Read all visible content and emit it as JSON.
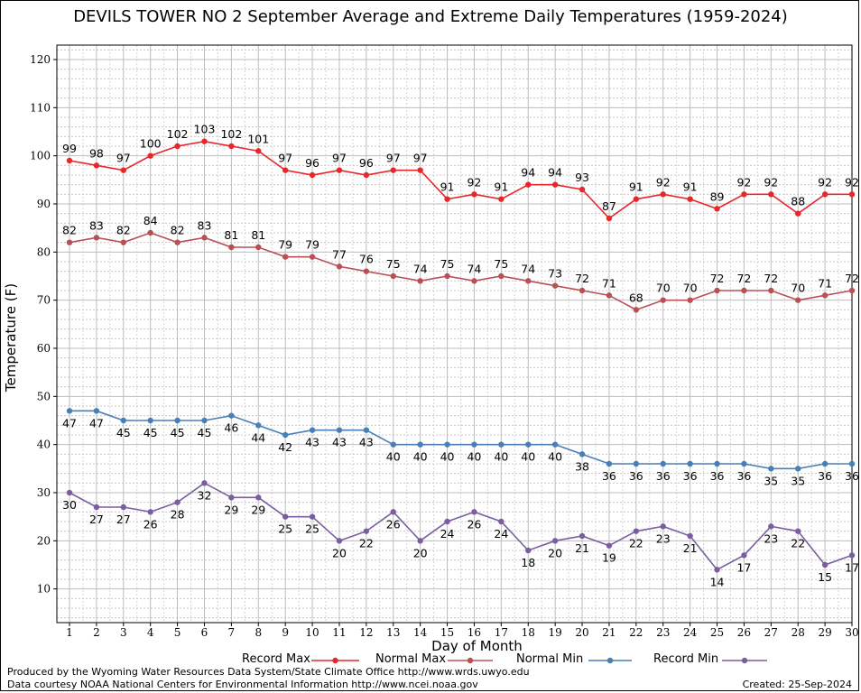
{
  "chart_data": {
    "type": "line",
    "title": "DEVILS TOWER NO 2 September Average and Extreme Daily Temperatures (1959-2024)",
    "xlabel": "Day of Month",
    "ylabel": "Temperature (F)",
    "xlim": [
      1,
      30
    ],
    "ylim": [
      3,
      123
    ],
    "yticks": [
      10,
      20,
      30,
      40,
      50,
      60,
      70,
      80,
      90,
      100,
      110,
      120
    ],
    "x": [
      1,
      2,
      3,
      4,
      5,
      6,
      7,
      8,
      9,
      10,
      11,
      12,
      13,
      14,
      15,
      16,
      17,
      18,
      19,
      20,
      21,
      22,
      23,
      24,
      25,
      26,
      27,
      28,
      29,
      30
    ],
    "grid": true,
    "legend_position": "bottom",
    "series": [
      {
        "name": "Record Max",
        "color": "#e8262b",
        "label_position": "above",
        "values": [
          99,
          98,
          97,
          100,
          102,
          103,
          102,
          101,
          97,
          96,
          97,
          96,
          97,
          97,
          91,
          92,
          91,
          94,
          94,
          93,
          87,
          91,
          92,
          91,
          89,
          92,
          92,
          88,
          92,
          92
        ]
      },
      {
        "name": "Normal Max",
        "color": "#b85058",
        "label_position": "above",
        "values": [
          82,
          83,
          82,
          84,
          82,
          83,
          81,
          81,
          79,
          79,
          77,
          76,
          75,
          74,
          75,
          74,
          75,
          74,
          73,
          72,
          71,
          68,
          70,
          70,
          72,
          72,
          72,
          70,
          71,
          72
        ]
      },
      {
        "name": "Normal Min",
        "color": "#4a7fb5",
        "label_position": "below",
        "values": [
          47,
          47,
          45,
          45,
          45,
          45,
          46,
          44,
          42,
          43,
          43,
          43,
          40,
          40,
          40,
          40,
          40,
          40,
          40,
          38,
          36,
          36,
          36,
          36,
          36,
          36,
          35,
          35,
          36,
          36
        ]
      },
      {
        "name": "Record Min",
        "color": "#7a5ea0",
        "label_position": "below",
        "values": [
          30,
          27,
          27,
          26,
          28,
          32,
          29,
          29,
          25,
          25,
          20,
          22,
          26,
          20,
          24,
          26,
          24,
          18,
          20,
          21,
          19,
          22,
          23,
          21,
          14,
          17,
          23,
          22,
          15,
          17
        ]
      }
    ]
  },
  "footer": {
    "produced": "Produced by the Wyoming Water Resources Data System/State Climate Office http://www.wrds.uwyo.edu",
    "courtesy": "Data courtesy NOAA National Centers for Environmental Information http://www.ncei.noaa.gov",
    "created": "Created:  25-Sep-2024"
  }
}
